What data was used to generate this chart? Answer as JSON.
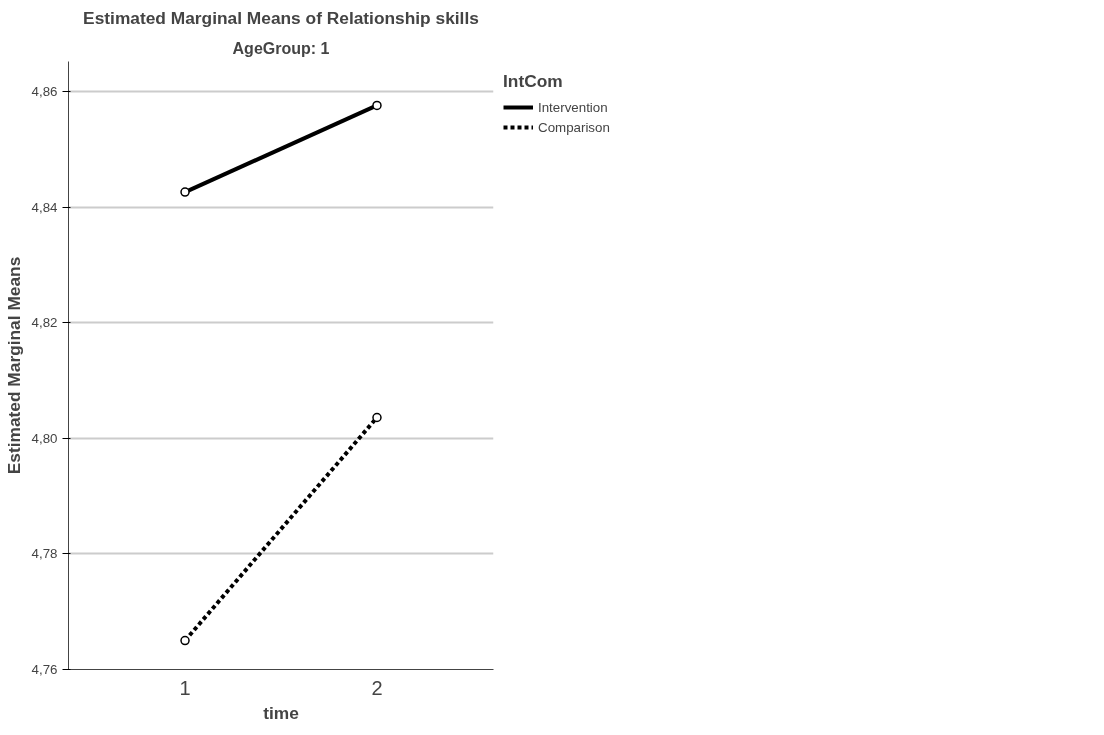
{
  "chart_data": {
    "type": "line",
    "title": "Estimated Marginal Means of Relationship skills",
    "subtitle": "AgeGroup: 1",
    "xlabel": "time",
    "ylabel": "Estimated Marginal Means",
    "legend_title": "IntCom",
    "categories": [
      "1",
      "2"
    ],
    "series": [
      {
        "name": "Intervention",
        "color": "#000000",
        "values": [
          4.8426,
          4.8576
        ],
        "line_style": "solid"
      },
      {
        "name": "Comparison",
        "color": "#000000",
        "values": [
          4.765,
          4.8036
        ],
        "line_style": "dashed"
      }
    ],
    "ylim": [
      4.76,
      4.8652
    ],
    "yticks": [
      {
        "value": 4.76,
        "label": "4,76"
      },
      {
        "value": 4.78,
        "label": "4,78"
      },
      {
        "value": 4.8,
        "label": "4,80"
      },
      {
        "value": 4.82,
        "label": "4,82"
      },
      {
        "value": 4.84,
        "label": "4,84"
      },
      {
        "value": 4.86,
        "label": "4,86"
      }
    ],
    "grid": "y",
    "legend": "top right",
    "marker": "circle"
  }
}
